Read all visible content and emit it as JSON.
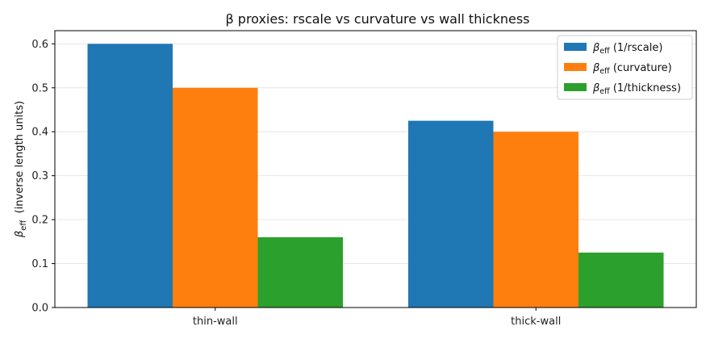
{
  "chart_data": {
    "type": "bar",
    "title": "β proxies: rscale vs curvature vs wall thickness",
    "xlabel": "",
    "ylabel": {
      "symbol": "β",
      "subscript": "eff",
      "text": "(inverse length units)"
    },
    "categories": [
      "thin-wall",
      "thick-wall"
    ],
    "series": [
      {
        "symbol": "β",
        "subscript": "eff",
        "name": "(1/rscale)",
        "color": "#1f77b4",
        "values": [
          0.6,
          0.425
        ]
      },
      {
        "symbol": "β",
        "subscript": "eff",
        "name": "(curvature)",
        "color": "#ff7f0e",
        "values": [
          0.5,
          0.4
        ]
      },
      {
        "symbol": "β",
        "subscript": "eff",
        "name": "(1/thickness)",
        "color": "#2ca02c",
        "values": [
          0.16,
          0.125
        ]
      }
    ],
    "ylim": [
      0,
      0.63
    ],
    "yticks": [
      0.0,
      0.1,
      0.2,
      0.3,
      0.4,
      0.5,
      0.6
    ],
    "grid": "y",
    "legend_position": "top-right"
  }
}
